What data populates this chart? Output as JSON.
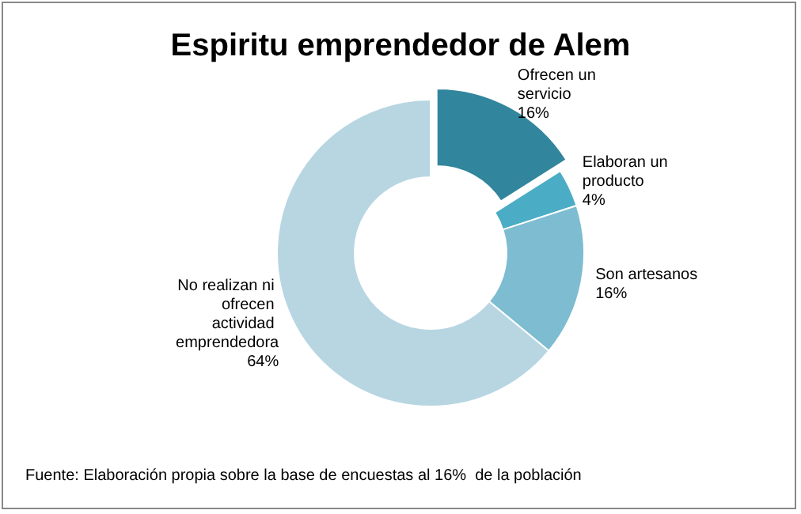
{
  "chart_data": {
    "type": "donut",
    "title": "Espiritu emprendedor de Alem",
    "categories": [
      "Ofrecen un servicio",
      "Elaboran un producto",
      "Son artesanos",
      "No realizan ni ofrecen actividad emprendedora"
    ],
    "values": [
      16,
      4,
      16,
      64
    ],
    "colors": [
      "#31859c",
      "#4bacc6",
      "#7dbcd1",
      "#b7d6e2"
    ],
    "value_labels": [
      "16%",
      "4%",
      "16%",
      "64%"
    ],
    "legend": false,
    "annotations": [
      "Fuente: Elaboración propia sobre la base de encuestas al 16%  de la población"
    ]
  }
}
